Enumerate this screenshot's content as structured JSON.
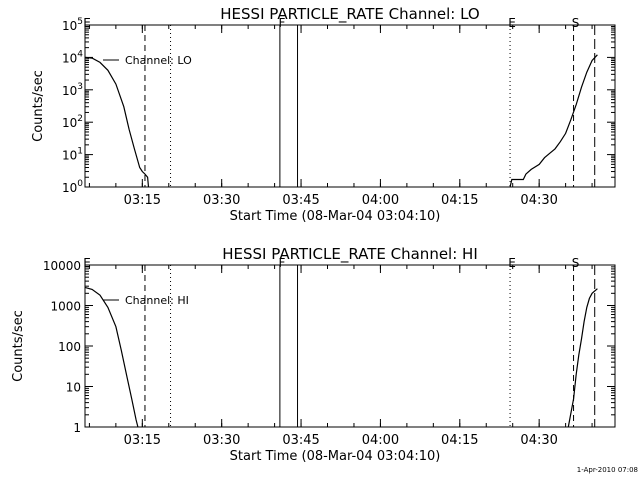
{
  "chart_data": [
    {
      "type": "line",
      "title": "HESSI PARTICLE_RATE Channel: LO",
      "xlabel": "Start Time (08-Mar-04 03:04:10)",
      "ylabel": "Counts/sec",
      "yscale": "log",
      "xlim": [
        "03:04:10",
        "04:44:20"
      ],
      "ylim": [
        1,
        100000
      ],
      "x_ticks": [
        "03:15",
        "03:30",
        "03:45",
        "04:00",
        "04:15",
        "04:30"
      ],
      "y_ticks": [
        "10^0",
        "10^1",
        "10^2",
        "10^3",
        "10^4",
        "10^5"
      ],
      "legend": {
        "label": "Channel: LO",
        "placement": "top-left"
      },
      "markers": [
        {
          "label": "E",
          "time": "03:04:10",
          "style": "none"
        },
        {
          "time": "03:15:30",
          "style": "dashed"
        },
        {
          "time": "03:20:20",
          "style": "dotted"
        },
        {
          "label": "F",
          "time": "03:41:00",
          "style": "solid"
        },
        {
          "time": "03:44:20",
          "style": "solid"
        },
        {
          "label": "E",
          "time": "04:24:30",
          "style": "dotted"
        },
        {
          "label": "S",
          "time": "04:36:30",
          "style": "dashed"
        },
        {
          "time": "04:40:30",
          "style": "longdash"
        }
      ],
      "series": [
        {
          "values": [
            [
              "03:04:10",
              10000
            ],
            [
              "03:05:30",
              9500
            ],
            [
              "03:07:00",
              7000
            ],
            [
              "03:08:30",
              4000
            ],
            [
              "03:10:00",
              1500
            ],
            [
              "03:11:30",
              300
            ],
            [
              "03:12:30",
              60
            ],
            [
              "03:13:30",
              15
            ],
            [
              "03:14:30",
              4
            ],
            [
              "03:15:00",
              3
            ],
            [
              "03:15:30",
              2.5
            ],
            [
              "03:16:00",
              2
            ],
            [
              "03:16:10",
              1
            ]
          ]
        },
        {
          "values": [
            [
              "04:24:30",
              1
            ],
            [
              "04:24:50",
              1.7
            ],
            [
              "04:27:00",
              1.7
            ],
            [
              "04:27:30",
              2.5
            ],
            [
              "04:28:30",
              3.5
            ],
            [
              "04:30:00",
              5
            ],
            [
              "04:31:00",
              8
            ],
            [
              "04:32:00",
              11
            ],
            [
              "04:33:00",
              15
            ],
            [
              "04:34:00",
              25
            ],
            [
              "04:35:00",
              45
            ],
            [
              "04:36:00",
              120
            ],
            [
              "04:37:00",
              350
            ],
            [
              "04:38:00",
              1200
            ],
            [
              "04:39:00",
              3500
            ],
            [
              "04:40:00",
              8000
            ],
            [
              "04:41:00",
              12000
            ]
          ]
        }
      ]
    },
    {
      "type": "line",
      "title": "HESSI PARTICLE_RATE Channel: HI",
      "xlabel": "Start Time (08-Mar-04 03:04:10)",
      "ylabel": "Counts/sec",
      "yscale": "log",
      "xlim": [
        "03:04:10",
        "04:44:20"
      ],
      "ylim": [
        1,
        10000
      ],
      "x_ticks": [
        "03:15",
        "03:30",
        "03:45",
        "04:00",
        "04:15",
        "04:30"
      ],
      "y_ticks": [
        "1",
        "10",
        "100",
        "1000",
        "10000"
      ],
      "legend": {
        "label": "Channel: HI",
        "placement": "top-left"
      },
      "markers": [
        {
          "label": "E",
          "time": "03:04:10",
          "style": "none"
        },
        {
          "time": "03:15:30",
          "style": "dashed"
        },
        {
          "time": "03:20:20",
          "style": "dotted"
        },
        {
          "label": "F",
          "time": "03:41:00",
          "style": "solid"
        },
        {
          "time": "03:44:20",
          "style": "solid"
        },
        {
          "label": "E",
          "time": "04:24:30",
          "style": "dotted"
        },
        {
          "label": "S",
          "time": "04:36:30",
          "style": "dashed"
        },
        {
          "time": "04:40:30",
          "style": "longdash"
        }
      ],
      "series": [
        {
          "values": [
            [
              "03:04:10",
              2800
            ],
            [
              "03:05:30",
              2500
            ],
            [
              "03:07:00",
              1800
            ],
            [
              "03:08:30",
              900
            ],
            [
              "03:10:00",
              300
            ],
            [
              "03:11:00",
              80
            ],
            [
              "03:12:00",
              20
            ],
            [
              "03:13:00",
              5
            ],
            [
              "03:13:50",
              1.5
            ],
            [
              "03:14:10",
              1
            ]
          ]
        },
        {
          "values": [
            [
              "04:35:30",
              1
            ],
            [
              "04:36:30",
              5
            ],
            [
              "04:37:00",
              20
            ],
            [
              "04:37:30",
              60
            ],
            [
              "04:38:00",
              150
            ],
            [
              "04:38:30",
              400
            ],
            [
              "04:39:00",
              900
            ],
            [
              "04:39:30",
              1500
            ],
            [
              "04:40:00",
              2000
            ],
            [
              "04:41:00",
              2600
            ]
          ]
        }
      ]
    }
  ],
  "footer": "1-Apr-2010 07:08"
}
